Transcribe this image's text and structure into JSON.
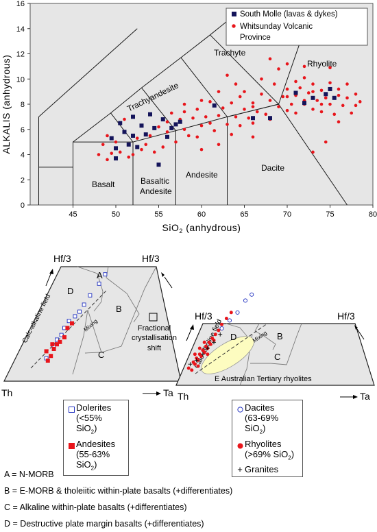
{
  "chart_data": [
    {
      "type": "scatter",
      "xlabel": "SiO2 (anhydrous)",
      "ylabel": "ALKALIS (anhydrous)",
      "xlim": [
        40,
        80
      ],
      "ylim": [
        0,
        16
      ],
      "xticks": [
        45,
        50,
        55,
        60,
        65,
        70,
        75,
        80
      ],
      "yticks": [
        0,
        2,
        4,
        6,
        8,
        10,
        12,
        14,
        16
      ],
      "field_labels": [
        "Trachyte",
        "Rhyolite",
        "Trachyandesite",
        "Basalt",
        "Basaltic Andesite",
        "Andesite",
        "Dacite"
      ],
      "field_label_basaltic_andesite": [
        "Basaltic",
        "Andesite"
      ],
      "legend_placement": "top-right",
      "series": [
        {
          "name": "South Molle (lavas & dykes)",
          "marker": "filled-square",
          "color": "#14145a",
          "points": [
            [
              49.5,
              5.3
            ],
            [
              50,
              4.5
            ],
            [
              50.5,
              6.5
            ],
            [
              51,
              5.8
            ],
            [
              51.5,
              4.8
            ],
            [
              52,
              5.5
            ],
            [
              52.5,
              4.6
            ],
            [
              53,
              6.3
            ],
            [
              53.5,
              5.6
            ],
            [
              54,
              7.2
            ],
            [
              54.5,
              6.1
            ],
            [
              55,
              3.2
            ],
            [
              55.5,
              6.8
            ],
            [
              56,
              5.4
            ],
            [
              57,
              6.4
            ],
            [
              57.5,
              6.6
            ],
            [
              61.5,
              7.9
            ],
            [
              66,
              6.9
            ],
            [
              68,
              6.9
            ],
            [
              71,
              8.9
            ],
            [
              72,
              8.1
            ],
            [
              73,
              8.5
            ],
            [
              74.5,
              8.8
            ],
            [
              75,
              9.2
            ],
            [
              75.5,
              8.5
            ],
            [
              52,
              7.0
            ],
            [
              50,
              3.7
            ],
            [
              56.5,
              6.1
            ]
          ]
        },
        {
          "name": "Whitsunday Volcanic Province",
          "marker": "filled-circle",
          "color": "#e8151b",
          "points": [
            [
              48,
              4.0
            ],
            [
              48.5,
              4.8
            ],
            [
              49,
              5.5
            ],
            [
              49,
              3.6
            ],
            [
              49.5,
              4.1
            ],
            [
              50,
              5.0
            ],
            [
              50.5,
              4.2
            ],
            [
              51,
              6.8
            ],
            [
              51.5,
              3.8
            ],
            [
              52,
              4.0
            ],
            [
              52.5,
              5.3
            ],
            [
              53,
              4.4
            ],
            [
              53.5,
              4.8
            ],
            [
              54,
              5.5
            ],
            [
              54.5,
              4.2
            ],
            [
              55,
              6.2
            ],
            [
              55.5,
              4.6
            ],
            [
              56,
              6.6
            ],
            [
              56,
              5.8
            ],
            [
              56.5,
              7.3
            ],
            [
              57,
              5.0
            ],
            [
              57.5,
              6.8
            ],
            [
              58,
              6.0
            ],
            [
              58,
              7.4
            ],
            [
              58.5,
              5.5
            ],
            [
              59,
              6.9
            ],
            [
              59.5,
              7.6
            ],
            [
              59.5,
              5.4
            ],
            [
              60,
              6.3
            ],
            [
              60,
              4.4
            ],
            [
              60.5,
              7.0
            ],
            [
              61,
              6.5
            ],
            [
              61,
              8.2
            ],
            [
              61.5,
              5.9
            ],
            [
              62,
              7.1
            ],
            [
              62,
              4.8
            ],
            [
              62.5,
              7.7
            ],
            [
              63,
              6.4
            ],
            [
              63,
              10.3
            ],
            [
              63.5,
              8.1
            ],
            [
              63.5,
              5.6
            ],
            [
              64,
              7.0
            ],
            [
              64.5,
              8.6
            ],
            [
              64.5,
              6.3
            ],
            [
              65,
              7.6
            ],
            [
              65,
              9.0
            ],
            [
              65.5,
              6.9
            ],
            [
              66,
              8.1
            ],
            [
              66,
              5.4
            ],
            [
              66.5,
              7.4
            ],
            [
              67,
              8.8
            ],
            [
              67,
              10.0
            ],
            [
              67.5,
              7.2
            ],
            [
              68,
              8.3
            ],
            [
              68.5,
              9.6
            ],
            [
              69,
              7.8
            ],
            [
              69,
              10.8
            ],
            [
              69.5,
              8.6
            ],
            [
              70,
              7.5
            ],
            [
              70,
              9.2
            ],
            [
              70.5,
              8.0
            ],
            [
              71,
              8.7
            ],
            [
              71,
              7.3
            ],
            [
              71.5,
              9.3
            ],
            [
              72,
              8.0
            ],
            [
              72,
              10.1
            ],
            [
              72.5,
              8.9
            ],
            [
              73,
              7.6
            ],
            [
              73,
              9.6
            ],
            [
              73.5,
              8.3
            ],
            [
              74,
              9.1
            ],
            [
              74,
              7.4
            ],
            [
              74.5,
              8.5
            ],
            [
              75,
              9.7
            ],
            [
              75,
              8.0
            ],
            [
              75.5,
              7.2
            ],
            [
              76,
              8.7
            ],
            [
              76,
              9.2
            ],
            [
              76.5,
              7.9
            ],
            [
              77,
              8.5
            ],
            [
              77.5,
              7.3
            ],
            [
              78,
              8.8
            ],
            [
              78,
              7.9
            ],
            [
              78.5,
              8.2
            ],
            [
              76,
              6.6
            ],
            [
              77,
              9.6
            ],
            [
              73,
              4.2
            ],
            [
              74.5,
              5.0
            ],
            [
              72,
              11.0
            ],
            [
              75,
              10.9
            ],
            [
              70,
              11.2
            ],
            [
              68,
              11.6
            ],
            [
              66,
              6.5
            ],
            [
              64,
              9.6
            ],
            [
              62,
              9.0
            ],
            [
              60,
              8.3
            ],
            [
              58,
              8.0
            ],
            [
              66,
              7.8
            ],
            [
              68,
              6.8
            ],
            [
              70,
              8.6
            ],
            [
              72,
              8.3
            ],
            [
              74,
              8.0
            ],
            [
              71,
              9.8
            ],
            [
              73,
              9.0
            ]
          ]
        }
      ]
    },
    {
      "type": "scatter",
      "diagram": "ternary",
      "apices": [
        "Hf/3",
        "Th",
        "Ta"
      ],
      "field_labels": [
        "A",
        "B",
        "C",
        "D",
        "Calc-alkaline field",
        "Mixing",
        "Fractional",
        "crystallisation",
        "shift"
      ],
      "series": [
        {
          "name": "Dolerites (<55% SiO2)",
          "marker": "open-square",
          "color": "#2030c0",
          "points": [
            [
              0.33,
              0.11
            ],
            [
              0.38,
              0.16
            ],
            [
              0.43,
              0.21
            ],
            [
              0.48,
              0.27
            ],
            [
              0.55,
              0.31
            ],
            [
              0.62,
              0.38
            ],
            [
              0.68,
              0.43
            ],
            [
              0.72,
              0.47
            ],
            [
              0.4,
              0.19
            ],
            [
              0.45,
              0.24
            ],
            [
              0.52,
              0.29
            ],
            [
              0.58,
              0.34
            ]
          ]
        },
        {
          "name": "Andesites (55-63% SiO2)",
          "marker": "filled-square",
          "color": "#e8151b",
          "points": [
            [
              0.33,
              0.14
            ],
            [
              0.36,
              0.12
            ],
            [
              0.38,
              0.15
            ],
            [
              0.4,
              0.17
            ],
            [
              0.42,
              0.18
            ],
            [
              0.45,
              0.2
            ],
            [
              0.47,
              0.24
            ],
            [
              0.5,
              0.26
            ],
            [
              0.34,
              0.1
            ],
            [
              0.37,
              0.17
            ]
          ]
        }
      ]
    },
    {
      "type": "scatter",
      "diagram": "ternary",
      "apices": [
        "Hf/3",
        "Th",
        "Ta"
      ],
      "field_labels": [
        "B",
        "C",
        "D",
        "Calc-alkaline field",
        "Mixing",
        "E Australian Tertiary rhyolites"
      ],
      "series": [
        {
          "name": "Dacites (63-69% SiO2)",
          "marker": "open-circle",
          "color": "#2030c0",
          "points": [
            [
              0.45,
              0.3
            ],
            [
              0.5,
              0.34
            ],
            [
              0.55,
              0.38
            ],
            [
              0.6,
              0.44
            ],
            [
              0.64,
              0.47
            ]
          ]
        },
        {
          "name": "Rhyolites (>69% SiO2)",
          "marker": "filled-circle",
          "color": "#e8151b",
          "points": [
            [
              0.24,
              0.1
            ],
            [
              0.27,
              0.13
            ],
            [
              0.29,
              0.15
            ],
            [
              0.31,
              0.17
            ],
            [
              0.33,
              0.19
            ],
            [
              0.35,
              0.21
            ],
            [
              0.37,
              0.23
            ],
            [
              0.39,
              0.25
            ],
            [
              0.41,
              0.27
            ],
            [
              0.43,
              0.29
            ],
            [
              0.45,
              0.32
            ],
            [
              0.48,
              0.35
            ],
            [
              0.51,
              0.38
            ],
            [
              0.26,
              0.09
            ],
            [
              0.28,
              0.12
            ],
            [
              0.3,
              0.14
            ],
            [
              0.32,
              0.16
            ],
            [
              0.34,
              0.18
            ],
            [
              0.36,
              0.2
            ],
            [
              0.38,
              0.22
            ],
            [
              0.4,
              0.24
            ],
            [
              0.28,
              0.17
            ],
            [
              0.31,
              0.2
            ],
            [
              0.34,
              0.23
            ],
            [
              0.36,
              0.17
            ],
            [
              0.3,
              0.11
            ]
          ]
        },
        {
          "name": "Granites",
          "marker": "plus",
          "color": "#000000",
          "points": [
            [
              0.25,
              0.12
            ],
            [
              0.29,
              0.14
            ],
            [
              0.33,
              0.17
            ],
            [
              0.36,
              0.2
            ],
            [
              0.4,
              0.23
            ],
            [
              0.44,
              0.27
            ]
          ]
        }
      ]
    }
  ],
  "legend_tas": {
    "item1": "South Molle (lavas & dykes)",
    "item2_line1": "Whitsunday Volcanic",
    "item2_line2": "Province"
  },
  "legend_left": {
    "dolerites": "Dolerites",
    "dolerites_range": "(<55% SiO",
    "andesites": "Andesites",
    "andesites_range": "(55-63% SiO"
  },
  "legend_right": {
    "dacites": "Dacites",
    "dacites_range": "(63-69% SiO",
    "rhyolites": "Rhyolites",
    "rhyolites_range": "(>69% SiO",
    "granites": "Granites"
  },
  "subscript_2": "2",
  "closing_paren": ")",
  "definitions": [
    "A = N-MORB",
    "B = E-MORB & tholeiitic within-plate basalts (+differentiates)",
    "C = Alkaline within-plate basalts (+differentiates)",
    "D = Destructive plate margin basalts (+differentiates)"
  ]
}
